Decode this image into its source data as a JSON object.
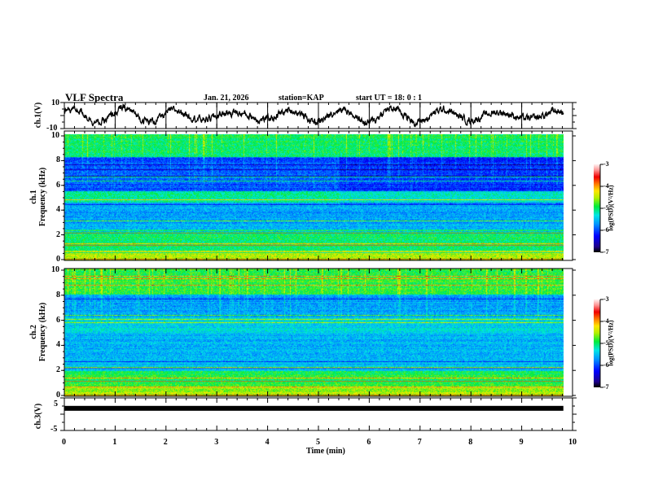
{
  "header": {
    "title": "VLF Spectra",
    "date": "Jan. 21, 2026",
    "station": "station=KAP",
    "start": "start UT =  18: 0  : 1"
  },
  "chart_data": [
    {
      "type": "line",
      "name": "ch1-waveform",
      "ylabel": "ch.1(V)",
      "ylim": [
        -10,
        10
      ],
      "yticks": [
        "10",
        "-10"
      ],
      "x_range_min": [
        0,
        9.82
      ],
      "description_values": "noisy waveform oscillating roughly between -8 and 8 V"
    },
    {
      "type": "heatmap",
      "name": "ch1-spectrogram",
      "ylabel_line1": "ch.1",
      "ylabel_line2": "Frequency  (kHz)",
      "ylim": [
        0,
        10
      ],
      "yticks": [
        "0",
        "2",
        "4",
        "6",
        "8",
        "10"
      ],
      "x_range_min": [
        0,
        9.82
      ],
      "colorbar": {
        "label": "log(PSD)(V²/Hz)",
        "range": [
          -7,
          -3
        ],
        "ticks": [
          "-3",
          "-4",
          "-5",
          "-6",
          "-7"
        ]
      }
    },
    {
      "type": "heatmap",
      "name": "ch2-spectrogram",
      "ylabel_line1": "ch.2",
      "ylabel_line2": "Frequency  (kHz)",
      "ylim": [
        0,
        10
      ],
      "yticks": [
        "0",
        "2",
        "4",
        "6",
        "8",
        "10"
      ],
      "x_range_min": [
        0,
        9.82
      ],
      "colorbar": {
        "label": "log(PSD)(V²/Hz)",
        "range": [
          -7,
          -3
        ],
        "ticks": [
          "-3",
          "-4",
          "-5",
          "-6",
          "-7"
        ]
      }
    },
    {
      "type": "line",
      "name": "ch3-waveform",
      "ylabel": "ch.3(V)",
      "ylim": [
        -5,
        5
      ],
      "yticks": [
        "5",
        "-5"
      ],
      "constant_value": 1.8,
      "x_range_min": [
        0,
        9.82
      ]
    }
  ],
  "xaxis": {
    "label": "Time  (min)",
    "range": [
      0,
      10
    ],
    "ticks": [
      "0",
      "1",
      "2",
      "3",
      "4",
      "5",
      "6",
      "7",
      "8",
      "9",
      "10"
    ]
  }
}
